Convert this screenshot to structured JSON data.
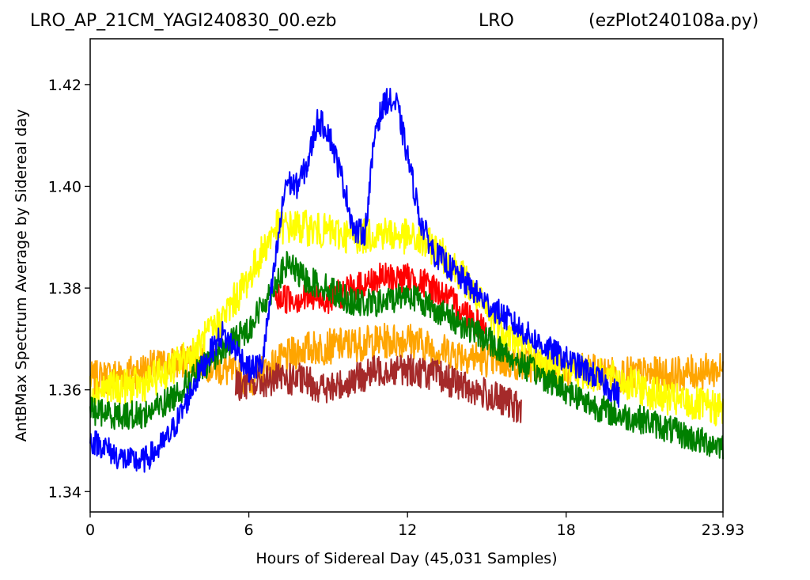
{
  "header": {
    "title_left": "LRO_AP_21CM_YAGI240830_00.ezb",
    "title_center": "LRO",
    "title_right": "(ezPlot240108a.py)"
  },
  "chart_data": {
    "type": "line",
    "title": "LRO_AP_21CM_YAGI240830_00.ezb",
    "xlabel": "Hours of Sidereal Day  (45,031 Samples)",
    "ylabel": "AntBMax Spectrum Average by Sidereal day",
    "xlim": [
      0,
      23.93
    ],
    "ylim": [
      1.336,
      1.429
    ],
    "x_ticks": [
      0,
      6,
      12,
      18,
      23.93
    ],
    "x_tick_labels": [
      "0",
      "6",
      "12",
      "18",
      "23.93"
    ],
    "y_ticks": [
      1.34,
      1.36,
      1.38,
      1.4,
      1.42
    ],
    "y_tick_labels": [
      "1.34",
      "1.36",
      "1.38",
      "1.40",
      "1.42"
    ],
    "grid": false,
    "legend": "none",
    "series": [
      {
        "color": "#ffa500",
        "noise": 0.0035,
        "draw_order": 1,
        "points": [
          [
            0,
            1.362
          ],
          [
            2,
            1.364
          ],
          [
            4,
            1.366
          ],
          [
            5,
            1.364
          ],
          [
            6,
            1.362
          ],
          [
            7,
            1.365
          ],
          [
            8,
            1.368
          ],
          [
            10,
            1.369
          ],
          [
            12,
            1.37
          ],
          [
            13,
            1.368
          ],
          [
            15,
            1.366
          ],
          [
            18,
            1.364
          ],
          [
            20,
            1.363
          ],
          [
            22,
            1.363
          ],
          [
            23.93,
            1.364
          ]
        ]
      },
      {
        "color": "#ffff00",
        "noise": 0.0035,
        "draw_order": 2,
        "points": [
          [
            0,
            1.36
          ],
          [
            2,
            1.361
          ],
          [
            3,
            1.364
          ],
          [
            4,
            1.368
          ],
          [
            5,
            1.374
          ],
          [
            6,
            1.382
          ],
          [
            7,
            1.392
          ],
          [
            8,
            1.392
          ],
          [
            9,
            1.391
          ],
          [
            10,
            1.39
          ],
          [
            11,
            1.391
          ],
          [
            12,
            1.39
          ],
          [
            13,
            1.388
          ],
          [
            14,
            1.383
          ],
          [
            15,
            1.375
          ],
          [
            16,
            1.37
          ],
          [
            17,
            1.366
          ],
          [
            18,
            1.364
          ],
          [
            20,
            1.362
          ],
          [
            22,
            1.358
          ],
          [
            23.93,
            1.356
          ]
        ]
      },
      {
        "color": "#ff0000",
        "noise": 0.003,
        "draw_order": 3,
        "points": [
          [
            7,
            1.378
          ],
          [
            8,
            1.378
          ],
          [
            9,
            1.378
          ],
          [
            10,
            1.38
          ],
          [
            11,
            1.382
          ],
          [
            12,
            1.382
          ],
          [
            13,
            1.38
          ],
          [
            14,
            1.376
          ],
          [
            15,
            1.372
          ]
        ]
      },
      {
        "color": "#a52a2a",
        "noise": 0.0032,
        "draw_order": 4,
        "points": [
          [
            5.5,
            1.361
          ],
          [
            6,
            1.361
          ],
          [
            7,
            1.362
          ],
          [
            8,
            1.362
          ],
          [
            9,
            1.36
          ],
          [
            10,
            1.362
          ],
          [
            11,
            1.364
          ],
          [
            12,
            1.364
          ],
          [
            13,
            1.363
          ],
          [
            14,
            1.361
          ],
          [
            15,
            1.359
          ],
          [
            16,
            1.357
          ],
          [
            16.3,
            1.356
          ]
        ]
      },
      {
        "color": "#008000",
        "noise": 0.0028,
        "draw_order": 5,
        "points": [
          [
            0,
            1.356
          ],
          [
            1,
            1.355
          ],
          [
            2,
            1.355
          ],
          [
            3,
            1.358
          ],
          [
            4,
            1.363
          ],
          [
            5,
            1.368
          ],
          [
            6,
            1.372
          ],
          [
            7,
            1.381
          ],
          [
            7.5,
            1.385
          ],
          [
            8,
            1.382
          ],
          [
            9,
            1.38
          ],
          [
            10,
            1.377
          ],
          [
            11,
            1.377
          ],
          [
            12,
            1.379
          ],
          [
            13,
            1.376
          ],
          [
            14,
            1.373
          ],
          [
            15,
            1.37
          ],
          [
            16,
            1.366
          ],
          [
            17,
            1.363
          ],
          [
            18,
            1.36
          ],
          [
            19,
            1.357
          ],
          [
            20,
            1.355
          ],
          [
            21,
            1.354
          ],
          [
            22,
            1.352
          ],
          [
            23,
            1.35
          ],
          [
            23.93,
            1.349
          ]
        ]
      },
      {
        "color": "#0000ff",
        "noise": 0.0026,
        "draw_order": 6,
        "points": [
          [
            0,
            1.35
          ],
          [
            0.5,
            1.349
          ],
          [
            1,
            1.347
          ],
          [
            1.5,
            1.346
          ],
          [
            2,
            1.346
          ],
          [
            2.5,
            1.348
          ],
          [
            3,
            1.351
          ],
          [
            3.5,
            1.356
          ],
          [
            4,
            1.362
          ],
          [
            4.5,
            1.367
          ],
          [
            5,
            1.371
          ],
          [
            5.5,
            1.368
          ],
          [
            6,
            1.364
          ],
          [
            6.5,
            1.365
          ],
          [
            7,
            1.385
          ],
          [
            7.4,
            1.401
          ],
          [
            7.8,
            1.4
          ],
          [
            8.2,
            1.404
          ],
          [
            8.6,
            1.413
          ],
          [
            9,
            1.411
          ],
          [
            9.6,
            1.4
          ],
          [
            10,
            1.391
          ],
          [
            10.4,
            1.391
          ],
          [
            10.8,
            1.412
          ],
          [
            11.2,
            1.417
          ],
          [
            11.6,
            1.416
          ],
          [
            12,
            1.406
          ],
          [
            12.5,
            1.393
          ],
          [
            13,
            1.387
          ],
          [
            14,
            1.382
          ],
          [
            15,
            1.377
          ],
          [
            16,
            1.373
          ],
          [
            17,
            1.369
          ],
          [
            18,
            1.366
          ],
          [
            19,
            1.363
          ],
          [
            20,
            1.359
          ]
        ]
      }
    ]
  }
}
